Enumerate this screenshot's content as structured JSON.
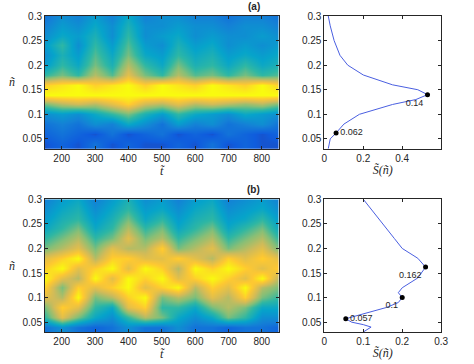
{
  "chart_data": [
    {
      "type": "heatmap",
      "title": "(a)",
      "x_label": "t̃",
      "y_label": "ñ",
      "x": [
        150,
        200,
        250,
        300,
        350,
        400,
        450,
        500,
        550,
        600,
        650,
        700,
        750,
        800,
        850
      ],
      "y": [
        0.04,
        0.06,
        0.08,
        0.1,
        0.12,
        0.14,
        0.16,
        0.18,
        0.2,
        0.22,
        0.24,
        0.26,
        0.28,
        0.3
      ],
      "cells": [
        [
          0.1,
          0.15,
          0.1,
          0.2,
          0.1,
          0.15,
          0.1,
          0.1,
          0.15,
          0.1,
          0.2,
          0.1,
          0.15,
          0.1,
          0.1
        ],
        [
          0.15,
          0.2,
          0.15,
          0.1,
          0.2,
          0.1,
          0.15,
          0.2,
          0.1,
          0.15,
          0.1,
          0.2,
          0.15,
          0.1,
          0.15
        ],
        [
          0.2,
          0.25,
          0.2,
          0.3,
          0.25,
          0.4,
          0.3,
          0.2,
          0.35,
          0.25,
          0.3,
          0.2,
          0.25,
          0.3,
          0.2
        ],
        [
          0.3,
          0.35,
          0.3,
          0.4,
          0.5,
          0.6,
          0.45,
          0.35,
          0.5,
          0.4,
          0.35,
          0.3,
          0.4,
          0.35,
          0.3
        ],
        [
          0.6,
          0.7,
          0.75,
          0.7,
          0.8,
          0.9,
          0.75,
          0.7,
          0.8,
          0.7,
          0.75,
          0.7,
          0.65,
          0.7,
          0.6
        ],
        [
          1,
          1,
          1,
          1,
          1,
          1,
          1,
          1,
          1,
          1,
          1,
          1,
          1,
          1,
          1
        ],
        [
          0.9,
          0.95,
          1,
          0.9,
          0.95,
          1,
          0.9,
          1,
          0.95,
          0.9,
          1,
          0.95,
          0.9,
          1,
          0.9
        ],
        [
          0.5,
          0.6,
          0.5,
          0.7,
          0.55,
          0.8,
          0.6,
          0.5,
          0.7,
          0.55,
          0.6,
          0.5,
          0.6,
          0.5,
          0.55
        ],
        [
          0.35,
          0.5,
          0.4,
          0.6,
          0.45,
          0.7,
          0.5,
          0.4,
          0.6,
          0.45,
          0.5,
          0.4,
          0.5,
          0.4,
          0.45
        ],
        [
          0.3,
          0.45,
          0.35,
          0.55,
          0.4,
          0.6,
          0.4,
          0.35,
          0.5,
          0.4,
          0.45,
          0.35,
          0.4,
          0.35,
          0.4
        ],
        [
          0.35,
          0.5,
          0.3,
          0.5,
          0.35,
          0.55,
          0.35,
          0.3,
          0.45,
          0.35,
          0.4,
          0.3,
          0.35,
          0.3,
          0.35
        ],
        [
          0.3,
          0.4,
          0.35,
          0.45,
          0.3,
          0.5,
          0.3,
          0.35,
          0.4,
          0.3,
          0.35,
          0.3,
          0.3,
          0.35,
          0.3
        ],
        [
          0.25,
          0.35,
          0.3,
          0.4,
          0.3,
          0.45,
          0.3,
          0.3,
          0.35,
          0.3,
          0.3,
          0.25,
          0.3,
          0.3,
          0.25
        ],
        [
          0.2,
          0.3,
          0.25,
          0.35,
          0.25,
          0.4,
          0.25,
          0.3,
          0.3,
          0.25,
          0.25,
          0.2,
          0.25,
          0.25,
          0.2
        ]
      ],
      "zlim": [
        0,
        1
      ],
      "xlim": [
        150,
        850
      ],
      "xticks": [
        200,
        300,
        400,
        500,
        600,
        700,
        800
      ],
      "ylim": [
        0.03,
        0.3
      ],
      "yticks": [
        0.05,
        0.1,
        0.15,
        0.2,
        0.25,
        0.3
      ]
    },
    {
      "type": "line",
      "x_label": "S̃(ñ)",
      "color": "#4a5fe0",
      "x": [
        0.02,
        0.03,
        0.06,
        0.1,
        0.18,
        0.35,
        0.47,
        0.53,
        0.48,
        0.35,
        0.2,
        0.12,
        0.08,
        0.05,
        0.03,
        0.02
      ],
      "y": [
        0.03,
        0.05,
        0.062,
        0.08,
        0.1,
        0.12,
        0.13,
        0.14,
        0.15,
        0.16,
        0.18,
        0.2,
        0.22,
        0.25,
        0.28,
        0.3
      ],
      "points": [
        {
          "x": 0.53,
          "y": 0.14,
          "label": "0.14"
        },
        {
          "x": 0.06,
          "y": 0.062,
          "label": "0.062"
        }
      ],
      "xlim": [
        0,
        0.6
      ],
      "xticks": [
        0,
        0.2,
        0.4
      ],
      "ylim": [
        0.03,
        0.3
      ],
      "yticks": [
        0.05,
        0.1,
        0.15,
        0.2,
        0.25,
        0.3
      ]
    },
    {
      "type": "heatmap",
      "title": "(b)",
      "x_label": "t̃",
      "y_label": "ñ",
      "x": [
        150,
        200,
        250,
        300,
        350,
        400,
        450,
        500,
        550,
        600,
        650,
        700,
        750,
        800,
        850
      ],
      "y": [
        0.04,
        0.06,
        0.08,
        0.1,
        0.12,
        0.14,
        0.16,
        0.18,
        0.2,
        0.22,
        0.24,
        0.26,
        0.28,
        0.3
      ],
      "cells": [
        [
          0.2,
          0.3,
          0.2,
          0.15,
          0.2,
          0.3,
          0.2,
          0.2,
          0.3,
          0.2,
          0.2,
          0.15,
          0.2,
          0.2,
          0.15
        ],
        [
          0.5,
          0.8,
          0.6,
          0.4,
          0.3,
          0.5,
          0.7,
          0.6,
          0.4,
          0.3,
          0.4,
          0.6,
          0.5,
          0.3,
          0.3
        ],
        [
          0.6,
          0.9,
          0.8,
          0.5,
          0.4,
          0.8,
          0.9,
          0.5,
          0.5,
          0.4,
          0.6,
          0.7,
          0.6,
          0.4,
          0.4
        ],
        [
          0.8,
          0.7,
          1,
          0.6,
          0.7,
          0.9,
          1,
          0.6,
          0.7,
          0.6,
          0.8,
          0.7,
          0.9,
          0.6,
          0.5
        ],
        [
          0.9,
          0.6,
          0.9,
          0.8,
          0.9,
          1,
          0.8,
          0.9,
          1,
          0.7,
          0.9,
          0.8,
          1,
          0.7,
          0.6
        ],
        [
          1,
          0.8,
          0.7,
          1,
          0.8,
          1,
          0.9,
          1,
          0.8,
          0.9,
          1,
          0.9,
          0.8,
          1,
          0.7
        ],
        [
          0.9,
          1,
          0.8,
          0.9,
          1,
          0.8,
          1,
          0.9,
          0.7,
          1,
          0.9,
          1,
          0.9,
          0.8,
          0.9
        ],
        [
          0.8,
          0.9,
          1,
          0.7,
          0.9,
          0.9,
          0.8,
          0.8,
          0.9,
          0.8,
          0.7,
          0.9,
          0.8,
          0.9,
          0.8
        ],
        [
          0.6,
          0.7,
          0.8,
          0.6,
          0.8,
          0.7,
          0.7,
          0.9,
          0.6,
          0.7,
          0.8,
          0.6,
          0.7,
          0.8,
          0.6
        ],
        [
          0.5,
          0.6,
          0.7,
          0.5,
          0.6,
          0.8,
          0.6,
          0.7,
          0.5,
          0.6,
          0.7,
          0.5,
          0.6,
          0.7,
          0.5
        ],
        [
          0.4,
          0.5,
          0.6,
          0.4,
          0.5,
          0.7,
          0.5,
          0.6,
          0.4,
          0.5,
          0.6,
          0.4,
          0.5,
          0.6,
          0.4
        ],
        [
          0.35,
          0.45,
          0.5,
          0.35,
          0.45,
          0.6,
          0.4,
          0.5,
          0.35,
          0.45,
          0.5,
          0.35,
          0.4,
          0.5,
          0.35
        ],
        [
          0.3,
          0.4,
          0.45,
          0.3,
          0.4,
          0.5,
          0.35,
          0.4,
          0.3,
          0.4,
          0.45,
          0.3,
          0.35,
          0.4,
          0.3
        ],
        [
          0.25,
          0.35,
          0.4,
          0.25,
          0.35,
          0.45,
          0.3,
          0.35,
          0.25,
          0.35,
          0.4,
          0.25,
          0.3,
          0.35,
          0.25
        ]
      ],
      "zlim": [
        0,
        1
      ],
      "xlim": [
        150,
        850
      ],
      "xticks": [
        200,
        300,
        400,
        500,
        600,
        700,
        800
      ],
      "ylim": [
        0.03,
        0.3
      ],
      "yticks": [
        0.05,
        0.1,
        0.15,
        0.2,
        0.25,
        0.3
      ]
    },
    {
      "type": "line",
      "x_label": "S̃(ñ)",
      "color": "#4a5fe0",
      "x": [
        0.1,
        0.12,
        0.1,
        0.07,
        0.055,
        0.09,
        0.16,
        0.19,
        0.2,
        0.19,
        0.2,
        0.24,
        0.26,
        0.24,
        0.2,
        0.18,
        0.15,
        0.12,
        0.1
      ],
      "y": [
        0.03,
        0.04,
        0.045,
        0.05,
        0.057,
        0.065,
        0.08,
        0.09,
        0.1,
        0.11,
        0.12,
        0.14,
        0.162,
        0.18,
        0.2,
        0.22,
        0.25,
        0.28,
        0.3
      ],
      "points": [
        {
          "x": 0.26,
          "y": 0.162,
          "label": "0.162"
        },
        {
          "x": 0.2,
          "y": 0.1,
          "label": "0.1"
        },
        {
          "x": 0.055,
          "y": 0.057,
          "label": "0.057"
        }
      ],
      "xlim": [
        0,
        0.3
      ],
      "xticks": [
        0,
        0.1,
        0.2,
        0.3
      ],
      "ylim": [
        0.03,
        0.3
      ],
      "yticks": [
        0.05,
        0.1,
        0.15,
        0.2,
        0.25,
        0.3
      ]
    }
  ]
}
